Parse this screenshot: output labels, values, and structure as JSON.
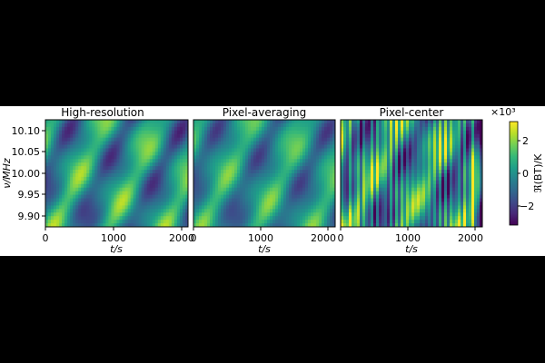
{
  "chart_data": [
    {
      "type": "heatmap",
      "title": "High-resolution",
      "xlabel": "t/s",
      "ylabel": "ν/MHz",
      "xlim": [
        0,
        2100
      ],
      "ylim": [
        9.875,
        10.125
      ],
      "xticks": [
        "0",
        "1000",
        "2000"
      ],
      "yticks": [
        "9.90",
        "9.95",
        "10.00",
        "10.05",
        "10.10"
      ]
    },
    {
      "type": "heatmap",
      "title": "Pixel-averaging",
      "xlabel": "t/s",
      "xlim": [
        0,
        2100
      ],
      "ylim": [
        9.875,
        10.125
      ],
      "xticks": [
        "0",
        "1000",
        "2000"
      ]
    },
    {
      "type": "heatmap",
      "title": "Pixel-center",
      "xlabel": "t/s",
      "xlim": [
        0,
        2100
      ],
      "ylim": [
        9.875,
        10.125
      ],
      "xticks": [
        "0",
        "1000",
        "2000"
      ]
    }
  ],
  "colorbar": {
    "label": "ℜ(BT)/K",
    "multiplier": "×10³",
    "range": [
      -3.2,
      3.2
    ],
    "ticks": [
      "2",
      "0",
      "−2"
    ],
    "tick_values": [
      2,
      0,
      -2
    ],
    "colormap": "viridis"
  },
  "colors": {
    "viridis": [
      "#440154",
      "#482878",
      "#3e4989",
      "#31688e",
      "#26828e",
      "#1f9e89",
      "#35b779",
      "#6ece58",
      "#b5de2b",
      "#fde725"
    ]
  }
}
